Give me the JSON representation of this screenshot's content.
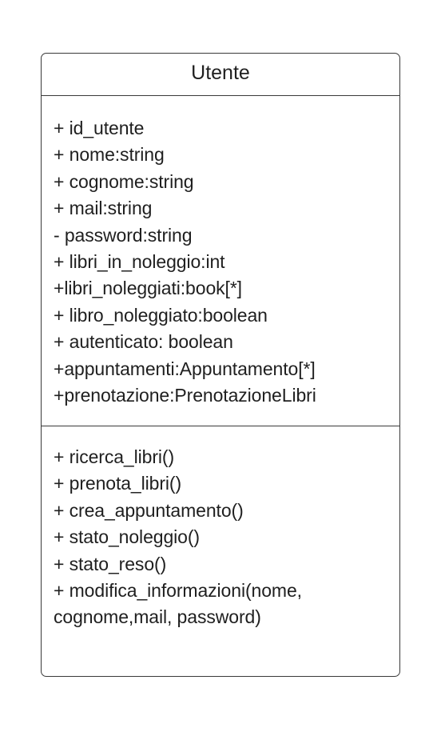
{
  "class": {
    "name": "Utente",
    "attributes": [
      "+ id_utente",
      "+ nome:string",
      "+ cognome:string",
      "+ mail:string",
      "- password:string",
      "+ libri_in_noleggio:int",
      "+libri_noleggiati:book[*]",
      "+ libro_noleggiato:boolean",
      "+ autenticato: boolean",
      "+appuntamenti:Appuntamento[*]",
      "+prenotazione:PrenotazioneLibri"
    ],
    "methods": [
      "+ ricerca_libri()",
      "+ prenota_libri()",
      "+ crea_appuntamento()",
      "+ stato_noleggio()",
      "+ stato_reso()",
      "+ modifica_informazioni(nome,",
      "cognome,mail, password)"
    ]
  },
  "colors": {
    "border": "#3a3a3a",
    "text": "#1f1f1f",
    "background": "#ffffff"
  }
}
